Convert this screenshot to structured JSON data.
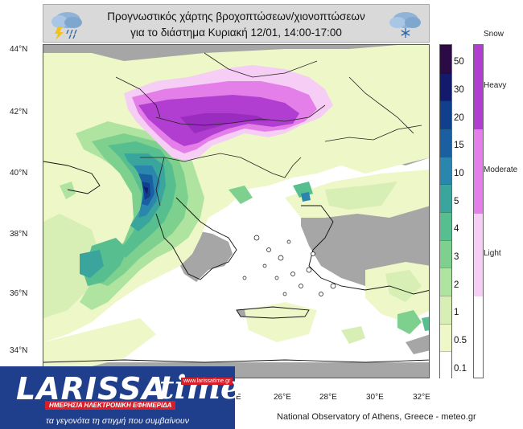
{
  "header": {
    "title_line1": "Προγνωστικός χάρτης βροχοπτώσεων/χιονοπτώσεων",
    "title_line2": "για το διάστημα Κυριακή 12/01, 14:00-17:00",
    "left_icon": "thunderstorm-rain-icon",
    "right_icon": "snow-cloud-icon"
  },
  "axes": {
    "lat_labels": [
      "44°N",
      "42°N",
      "40°N",
      "38°N",
      "36°N",
      "34°N"
    ],
    "lon_labels": [
      "26°E",
      "28°E",
      "30°E",
      "32°E"
    ],
    "partial_lon_label": "E"
  },
  "precip_scale": {
    "labels": [
      "50",
      "30",
      "20",
      "15",
      "10",
      "5",
      "4",
      "3",
      "2",
      "1",
      "0.5",
      "0.1"
    ],
    "colors": [
      "#2b0a45",
      "#111a6b",
      "#123f8c",
      "#1a5fa0",
      "#2b86ad",
      "#3aa59c",
      "#56be8f",
      "#7ed08e",
      "#aee3a0",
      "#d7efb4",
      "#eef7c7",
      "#ffffff"
    ]
  },
  "snow_scale": {
    "title": "Snow",
    "labels": [
      "Heavy",
      "Moderate",
      "Light"
    ],
    "colors": [
      "#b13ed0",
      "#e47fea",
      "#f5cdf5"
    ]
  },
  "credit": "National Observatory of Athens, Greece - meteo.gr",
  "logo": {
    "name_a": "LARISSA",
    "name_b": "time",
    "url": "www.larissatime.gr",
    "subtitle": "ΗΜΕΡΗΣΙΑ ΗΛΕΚΤΡΟΝΙΚΗ ΕΦΗΜΕΡΙΔΑ",
    "tagline": "τα γεγονότα τη στιγμή που συμβαίνουν"
  }
}
